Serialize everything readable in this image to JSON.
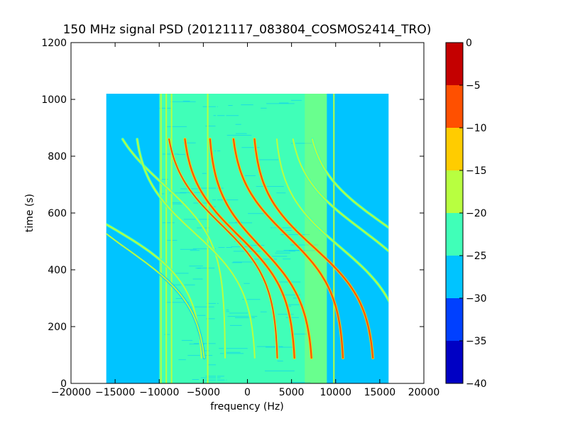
{
  "chart_data": {
    "type": "heatmap",
    "title": "150 MHz signal PSD (20121117_083804_COSMOS2414_TRO)",
    "xlabel": "frequency (Hz)",
    "ylabel": "time (s)",
    "xlim": [
      -20000,
      20000
    ],
    "ylim": [
      0,
      1200
    ],
    "xticks": [
      -20000,
      -15000,
      -10000,
      -5000,
      0,
      5000,
      10000,
      15000,
      20000
    ],
    "xtick_labels": [
      "−20000",
      "−15000",
      "−10000",
      "−5000",
      "0",
      "5000",
      "10000",
      "15000",
      "20000"
    ],
    "yticks": [
      0,
      200,
      400,
      600,
      800,
      1000,
      1200
    ],
    "ytick_labels": [
      "0",
      "200",
      "400",
      "600",
      "800",
      "1000",
      "1200"
    ],
    "data_extent": {
      "x": [
        -16000,
        16000
      ],
      "y": [
        0,
        1020
      ]
    },
    "background_level": -27,
    "colorbar": {
      "range": [
        -40,
        0
      ],
      "levels": [
        -40,
        -35,
        -30,
        -25,
        -20,
        -15,
        -10,
        -5,
        0
      ],
      "tick_labels": [
        "−40",
        "−35",
        "−30",
        "−25",
        "−20",
        "−15",
        "−10",
        "−5",
        "0"
      ],
      "colors": [
        "#0000c4",
        "#0040ff",
        "#00c4ff",
        "#40ffb8",
        "#b8ff40",
        "#ffcc00",
        "#ff5000",
        "#c40000"
      ]
    },
    "series": [
      {
        "f_center": -16000,
        "t_center": 560,
        "spread": 11000,
        "level": -17
      },
      {
        "f_center": -13500,
        "t_center": 470,
        "spread": 9000,
        "level": -20
      },
      {
        "f_center": -9500,
        "t_center": 700,
        "spread": 7000,
        "level": -19
      },
      {
        "f_center": -6000,
        "t_center": 530,
        "spread": 7000,
        "level": -19
      },
      {
        "f_center": -3000,
        "t_center": 560,
        "spread": 6500,
        "level": -10
      },
      {
        "f_center": -1000,
        "t_center": 520,
        "spread": 6500,
        "level": -9
      },
      {
        "f_center": 1500,
        "t_center": 480,
        "spread": 6000,
        "level": -8
      },
      {
        "f_center": 4500,
        "t_center": 520,
        "spread": 6500,
        "level": -7
      },
      {
        "f_center": 7500,
        "t_center": 480,
        "spread": 7000,
        "level": -6
      },
      {
        "f_center": 10500,
        "t_center": 480,
        "spread": 7500,
        "level": -17
      },
      {
        "f_center": 13000,
        "t_center": 540,
        "spread": 8500,
        "level": -17
      },
      {
        "f_center": 15500,
        "t_center": 560,
        "spread": 9000,
        "level": -17
      }
    ],
    "vertical_lines": [
      {
        "f": -9800,
        "level": -18
      },
      {
        "f": -9200,
        "level": -19
      },
      {
        "f": -8600,
        "level": -18
      },
      {
        "f": -4500,
        "level": -20
      },
      {
        "f": -3500,
        "level": -22
      },
      {
        "f": -2500,
        "level": -21
      },
      {
        "f": 9800,
        "level": -20
      }
    ],
    "noise_band": {
      "f_min": -10000,
      "f_max": 9000,
      "level": -23
    },
    "hot_band": {
      "f_min": 6500,
      "f_max": 9000,
      "level": -19
    },
    "grid": false,
    "legend": "none"
  }
}
